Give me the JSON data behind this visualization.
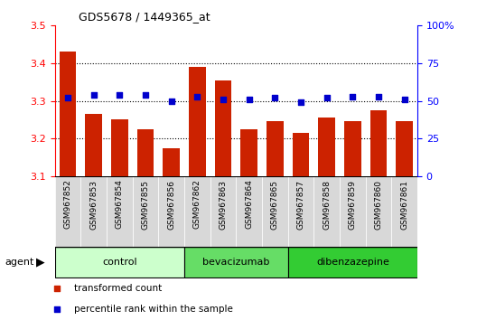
{
  "title": "GDS5678 / 1449365_at",
  "samples": [
    "GSM967852",
    "GSM967853",
    "GSM967854",
    "GSM967855",
    "GSM967856",
    "GSM967862",
    "GSM967863",
    "GSM967864",
    "GSM967865",
    "GSM967857",
    "GSM967858",
    "GSM967859",
    "GSM967860",
    "GSM967861"
  ],
  "transformed_count": [
    3.43,
    3.265,
    3.25,
    3.225,
    3.175,
    3.39,
    3.355,
    3.225,
    3.245,
    3.215,
    3.255,
    3.245,
    3.275,
    3.245
  ],
  "percentile_rank": [
    52,
    54,
    54,
    54,
    50,
    53,
    51,
    51,
    52,
    49,
    52,
    53,
    53,
    51
  ],
  "groups": [
    {
      "label": "control",
      "start": 0,
      "end": 5,
      "color": "#ccffcc"
    },
    {
      "label": "bevacizumab",
      "start": 5,
      "end": 9,
      "color": "#66dd66"
    },
    {
      "label": "dibenzazepine",
      "start": 9,
      "end": 14,
      "color": "#33cc33"
    }
  ],
  "ylim_left": [
    3.1,
    3.5
  ],
  "ylim_right": [
    0,
    100
  ],
  "yticks_left": [
    3.1,
    3.2,
    3.3,
    3.4,
    3.5
  ],
  "yticks_right": [
    0,
    25,
    50,
    75,
    100
  ],
  "hgrid_vals": [
    3.2,
    3.3,
    3.4
  ],
  "bar_color": "#cc2200",
  "dot_color": "#0000cc",
  "background_color": "#ffffff",
  "bar_width": 0.65,
  "xlabel_gray": "#d0d0d0",
  "legend_items": [
    {
      "label": "transformed count",
      "color": "#cc2200",
      "marker": "s"
    },
    {
      "label": "percentile rank within the sample",
      "color": "#0000cc",
      "marker": "s"
    }
  ]
}
